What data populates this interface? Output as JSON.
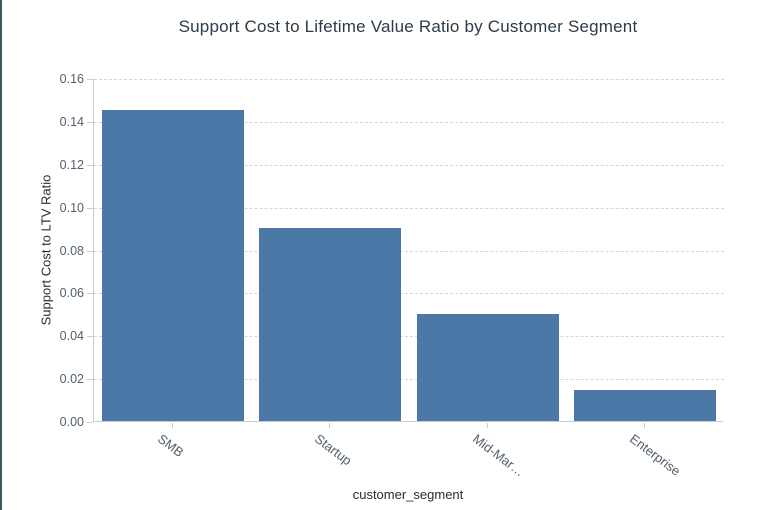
{
  "window": {
    "left_border_color": "#42545e",
    "background": "#ffffff"
  },
  "chart_data": {
    "type": "bar",
    "title": "Support Cost to Lifetime Value Ratio by Customer Segment",
    "xlabel": "customer_segment",
    "ylabel": "Support Cost to LTV Ratio",
    "categories": [
      "SMB",
      "Startup",
      "Mid-Mar…",
      "Enterprise"
    ],
    "values": [
      0.145,
      0.09,
      0.05,
      0.0145
    ],
    "ylim": [
      0,
      0.16
    ],
    "ytick_step": 0.02,
    "ytick_labels": [
      "0.00",
      "0.02",
      "0.04",
      "0.06",
      "0.08",
      "0.10",
      "0.12",
      "0.14",
      "0.16"
    ],
    "grid": "horizontal dashed",
    "legend": "none",
    "bar_color": "#4c78a8",
    "axis_color": "#c9cdd1",
    "tick_label_color": "#53606e",
    "title_color": "#2e3a45"
  }
}
